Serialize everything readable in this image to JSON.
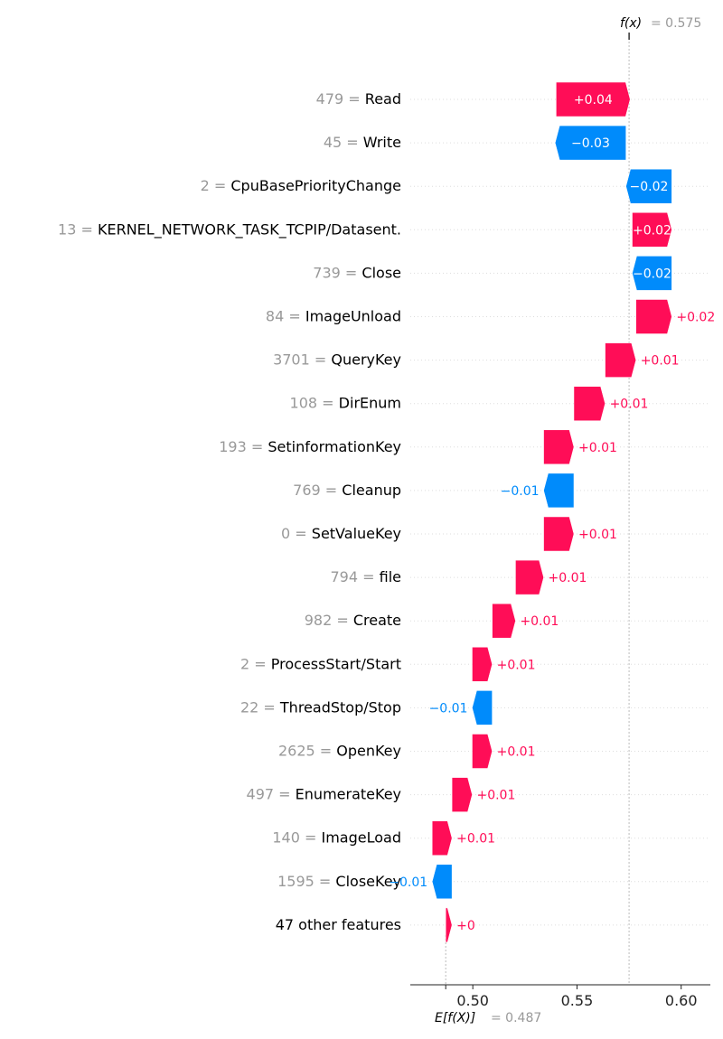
{
  "chart_data": {
    "type": "waterfall",
    "fx_label": "f(x)",
    "fx_value_text": "= 0.575",
    "ex_label": "E[f(X)]",
    "ex_value_text": "= 0.487",
    "base_value": 0.487,
    "output_value": 0.575,
    "xlim": [
      0.47,
      0.614
    ],
    "xticks": [
      0.5,
      0.55,
      0.6
    ],
    "xtick_labels": [
      "0.50",
      "0.55",
      "0.60"
    ],
    "colors": {
      "positive": "#ff0d57",
      "negative": "#008bfb",
      "text_on_bar": "#ffffff"
    },
    "features": [
      {
        "value": "479",
        "name": "Read",
        "start": 0.54,
        "end": 0.5755,
        "label": "+0.04"
      },
      {
        "value": "45",
        "name": "Write",
        "start": 0.5735,
        "end": 0.5395,
        "label": "−0.03"
      },
      {
        "value": "2",
        "name": "CpuBasePriorityChange",
        "start": 0.5955,
        "end": 0.5735,
        "label": "−0.02"
      },
      {
        "value": "13",
        "name": "KERNEL_NETWORK_TASK_TCPIP/Datasent.",
        "start": 0.5765,
        "end": 0.5955,
        "label": "+0.02"
      },
      {
        "value": "739",
        "name": "Close",
        "start": 0.5955,
        "end": 0.5765,
        "label": "−0.02"
      },
      {
        "value": "84",
        "name": "ImageUnload",
        "start": 0.5783,
        "end": 0.5955,
        "label": "+0.02"
      },
      {
        "value": "3701",
        "name": "QueryKey",
        "start": 0.5635,
        "end": 0.5783,
        "label": "+0.01"
      },
      {
        "value": "108",
        "name": "DirEnum",
        "start": 0.5485,
        "end": 0.5635,
        "label": "+0.01"
      },
      {
        "value": "193",
        "name": "SetinformationKey",
        "start": 0.534,
        "end": 0.5485,
        "label": "+0.01"
      },
      {
        "value": "769",
        "name": "Cleanup",
        "start": 0.5485,
        "end": 0.534,
        "label": "−0.01"
      },
      {
        "value": "0",
        "name": "SetValueKey",
        "start": 0.534,
        "end": 0.5485,
        "label": "+0.01"
      },
      {
        "value": "794",
        "name": "file",
        "start": 0.5205,
        "end": 0.534,
        "label": "+0.01"
      },
      {
        "value": "982",
        "name": "Create",
        "start": 0.5093,
        "end": 0.5205,
        "label": "+0.01"
      },
      {
        "value": "2",
        "name": "ProcessStart/Start",
        "start": 0.4997,
        "end": 0.5093,
        "label": "+0.01"
      },
      {
        "value": "22",
        "name": "ThreadStop/Stop",
        "start": 0.5093,
        "end": 0.4997,
        "label": "−0.01"
      },
      {
        "value": "2625",
        "name": "OpenKey",
        "start": 0.4997,
        "end": 0.5093,
        "label": "+0.01"
      },
      {
        "value": "497",
        "name": "EnumerateKey",
        "start": 0.49,
        "end": 0.4997,
        "label": "+0.01"
      },
      {
        "value": "140",
        "name": "ImageLoad",
        "start": 0.4805,
        "end": 0.49,
        "label": "+0.01"
      },
      {
        "value": "1595",
        "name": "CloseKey",
        "start": 0.49,
        "end": 0.4805,
        "label": "−0.01"
      },
      {
        "value": "",
        "name": "47 other features",
        "start": 0.487,
        "end": 0.49,
        "label": "+0"
      }
    ]
  }
}
